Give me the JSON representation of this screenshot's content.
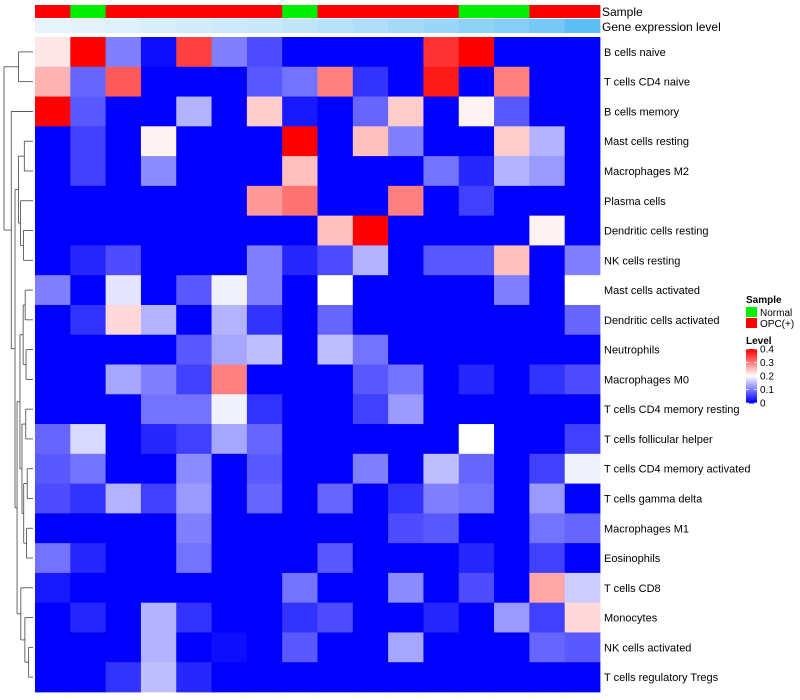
{
  "chart_data": {
    "type": "heatmap",
    "title": "",
    "xlabel": "",
    "ylabel": "",
    "annotation_tracks": {
      "sample": {
        "label": "Sample",
        "values": [
          "OPC(+)",
          "Normal",
          "OPC(+)",
          "OPC(+)",
          "OPC(+)",
          "OPC(+)",
          "OPC(+)",
          "Normal",
          "OPC(+)",
          "OPC(+)",
          "OPC(+)",
          "OPC(+)",
          "Normal",
          "Normal",
          "OPC(+)",
          "OPC(+)"
        ]
      },
      "gene_expression_level": {
        "label": "Gene expression level",
        "values": [
          0.02,
          0.04,
          0.06,
          0.08,
          0.1,
          0.12,
          0.14,
          0.17,
          0.2,
          0.24,
          0.28,
          0.32,
          0.36,
          0.4,
          0.45,
          0.55
        ]
      }
    },
    "rows": [
      "B cells naive",
      "T cells CD4 naive",
      "B cells memory",
      "Mast cells resting",
      "Macrophages M2",
      "Plasma cells",
      "Dendritic cells resting",
      "NK cells resting",
      "Mast cells activated",
      "Dendritic cells activated",
      "Neutrophils",
      "Macrophages M0",
      "T cells CD4 memory resting",
      "T cells follicular helper",
      "T cells CD4 memory activated",
      "T cells gamma delta",
      "Macrophages M1",
      "Eosinophils",
      "T cells CD8",
      "Monocytes",
      "NK cells activated",
      "T cells regulatory  Tregs"
    ],
    "values": [
      [
        0.22,
        0.4,
        0.1,
        0.01,
        0.35,
        0.1,
        0.06,
        0.0,
        0.0,
        0.0,
        0.0,
        0.36,
        0.4,
        0.0,
        0.0,
        0.0
      ],
      [
        0.26,
        0.08,
        0.33,
        0.0,
        0.0,
        0.0,
        0.07,
        0.09,
        0.3,
        0.04,
        0.0,
        0.38,
        0.0,
        0.3,
        0.0,
        0.0
      ],
      [
        0.4,
        0.07,
        0.0,
        0.0,
        0.14,
        0.0,
        0.24,
        0.02,
        0.0,
        0.08,
        0.24,
        0.0,
        0.21,
        0.07,
        0.0,
        0.0
      ],
      [
        0.0,
        0.05,
        0.0,
        0.21,
        0.0,
        0.0,
        0.0,
        0.4,
        0.0,
        0.25,
        0.1,
        0.0,
        0.0,
        0.24,
        0.14,
        0.0
      ],
      [
        0.0,
        0.05,
        0.0,
        0.11,
        0.0,
        0.0,
        0.0,
        0.25,
        0.0,
        0.0,
        0.0,
        0.09,
        0.03,
        0.14,
        0.12,
        0.0
      ],
      [
        0.0,
        0.0,
        0.0,
        0.0,
        0.0,
        0.0,
        0.28,
        0.31,
        0.0,
        0.0,
        0.3,
        0.0,
        0.05,
        0.0,
        0.0,
        0.0
      ],
      [
        0.0,
        0.0,
        0.0,
        0.0,
        0.0,
        0.0,
        0.0,
        0.0,
        0.25,
        0.4,
        0.0,
        0.0,
        0.0,
        0.0,
        0.21,
        0.0
      ],
      [
        0.0,
        0.03,
        0.06,
        0.0,
        0.0,
        0.0,
        0.1,
        0.03,
        0.06,
        0.14,
        0.0,
        0.07,
        0.07,
        0.25,
        0.0,
        0.1
      ],
      [
        0.1,
        0.0,
        0.18,
        0.0,
        0.07,
        0.19,
        0.1,
        0.0,
        0.2,
        0.0,
        0.0,
        0.0,
        0.0,
        0.1,
        0.0,
        0.2
      ],
      [
        0.0,
        0.04,
        0.23,
        0.14,
        0.0,
        0.14,
        0.04,
        0.0,
        0.08,
        0.0,
        0.0,
        0.0,
        0.0,
        0.0,
        0.0,
        0.08
      ],
      [
        0.0,
        0.0,
        0.0,
        0.0,
        0.07,
        0.13,
        0.15,
        0.0,
        0.15,
        0.09,
        0.0,
        0.0,
        0.0,
        0.0,
        0.0,
        0.0
      ],
      [
        0.0,
        0.0,
        0.13,
        0.1,
        0.05,
        0.3,
        0.0,
        0.0,
        0.0,
        0.07,
        0.09,
        0.0,
        0.03,
        0.0,
        0.04,
        0.06
      ],
      [
        0.0,
        0.0,
        0.0,
        0.09,
        0.09,
        0.19,
        0.04,
        0.0,
        0.0,
        0.05,
        0.12,
        0.0,
        0.0,
        0.0,
        0.0,
        0.0
      ],
      [
        0.08,
        0.17,
        0.0,
        0.03,
        0.05,
        0.13,
        0.08,
        0.0,
        0.0,
        0.0,
        0.0,
        0.0,
        0.2,
        0.0,
        0.0,
        0.05
      ],
      [
        0.07,
        0.09,
        0.0,
        0.0,
        0.11,
        0.0,
        0.07,
        0.0,
        0.0,
        0.1,
        0.0,
        0.15,
        0.08,
        0.0,
        0.05,
        0.19
      ],
      [
        0.06,
        0.04,
        0.14,
        0.05,
        0.12,
        0.0,
        0.08,
        0.0,
        0.08,
        0.0,
        0.04,
        0.1,
        0.09,
        0.0,
        0.12,
        0.0
      ],
      [
        0.0,
        0.0,
        0.0,
        0.0,
        0.1,
        0.0,
        0.0,
        0.0,
        0.0,
        0.0,
        0.06,
        0.07,
        0.0,
        0.0,
        0.09,
        0.08
      ],
      [
        0.09,
        0.03,
        0.0,
        0.0,
        0.09,
        0.0,
        0.0,
        0.0,
        0.07,
        0.0,
        0.0,
        0.0,
        0.03,
        0.0,
        0.05,
        0.0
      ],
      [
        0.02,
        0.0,
        0.0,
        0.0,
        0.0,
        0.0,
        0.0,
        0.09,
        0.0,
        0.0,
        0.11,
        0.0,
        0.06,
        0.0,
        0.27,
        0.16
      ],
      [
        0.0,
        0.03,
        0.0,
        0.14,
        0.04,
        0.0,
        0.0,
        0.04,
        0.06,
        0.0,
        0.0,
        0.03,
        0.0,
        0.12,
        0.05,
        0.23
      ],
      [
        0.0,
        0.0,
        0.0,
        0.14,
        0.0,
        0.01,
        0.0,
        0.07,
        0.0,
        0.0,
        0.13,
        0.0,
        0.0,
        0.0,
        0.08,
        0.07
      ],
      [
        0.0,
        0.0,
        0.04,
        0.15,
        0.03,
        0.0,
        0.0,
        0.0,
        0.0,
        0.0,
        0.0,
        0.0,
        0.0,
        0.0,
        0.0,
        0.0
      ]
    ],
    "legend": {
      "placement": "right",
      "sample": {
        "title": "Sample",
        "entries": [
          {
            "label": "Normal",
            "color": "#00ee00"
          },
          {
            "label": "OPC(+)",
            "color": "#ff0000"
          }
        ]
      },
      "level": {
        "title": "Level",
        "ticks": [
          "0.4",
          "0.3",
          "0.2",
          "0.1",
          "0"
        ],
        "tick_values": [
          0.4,
          0.3,
          0.2,
          0.1,
          0
        ],
        "min": 0,
        "max": 0.4,
        "colors": {
          "low": "#0000ff",
          "mid": "#ffffff",
          "high": "#ff0000"
        }
      }
    },
    "colors": {
      "normal": "#00ee00",
      "opc": "#ff0000",
      "expr_low": "#e8f4fb",
      "expr_high": "#5cbff5",
      "dendrogram": "#444444"
    }
  }
}
